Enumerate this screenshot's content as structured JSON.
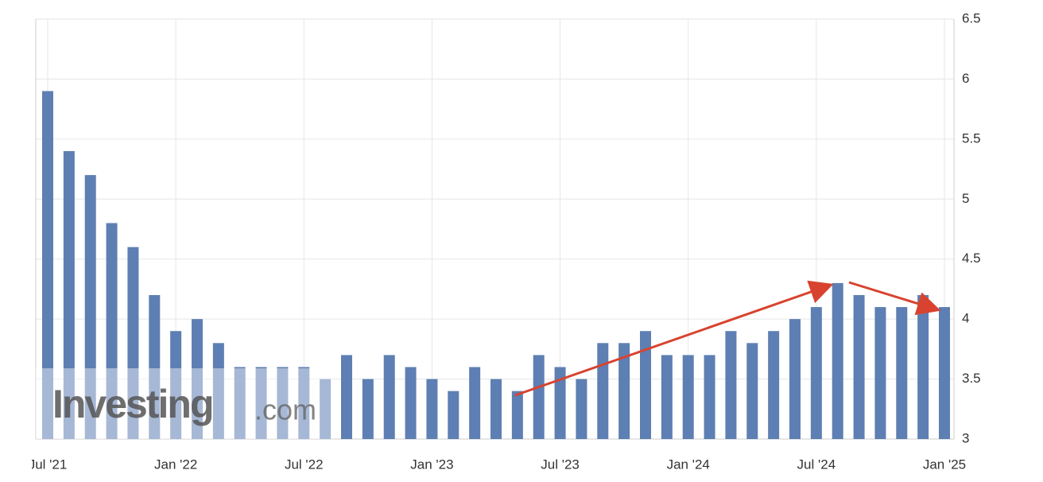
{
  "chart_data": {
    "type": "bar",
    "categories": [
      "Jul '21",
      null,
      null,
      null,
      null,
      null,
      "Jan '22",
      null,
      null,
      null,
      null,
      null,
      "Jul '22",
      null,
      null,
      null,
      null,
      null,
      "Jan '23",
      null,
      null,
      null,
      null,
      null,
      "Jul '23",
      null,
      null,
      null,
      null,
      null,
      "Jan '24",
      null,
      null,
      null,
      null,
      null,
      "Jul '24",
      null,
      null,
      null,
      null,
      null,
      "Jan '25"
    ],
    "values": [
      5.9,
      5.4,
      5.2,
      4.8,
      4.6,
      4.2,
      3.9,
      4.0,
      3.8,
      3.6,
      3.6,
      3.6,
      3.6,
      3.5,
      3.7,
      3.5,
      3.7,
      3.6,
      3.5,
      3.4,
      3.6,
      3.5,
      3.4,
      3.7,
      3.6,
      3.5,
      3.8,
      3.8,
      3.9,
      3.7,
      3.7,
      3.7,
      3.9,
      3.8,
      3.9,
      4.0,
      4.1,
      4.3,
      4.2,
      4.1,
      4.1,
      4.2,
      4.1
    ],
    "color": "#5d7fb3",
    "ylim": [
      3,
      6.5
    ],
    "yticks": [
      3,
      3.5,
      4,
      4.5,
      5,
      5.5,
      6,
      6.5
    ],
    "grid": true,
    "watermark": {
      "brand": "Investing",
      "suffix": ".com"
    }
  }
}
